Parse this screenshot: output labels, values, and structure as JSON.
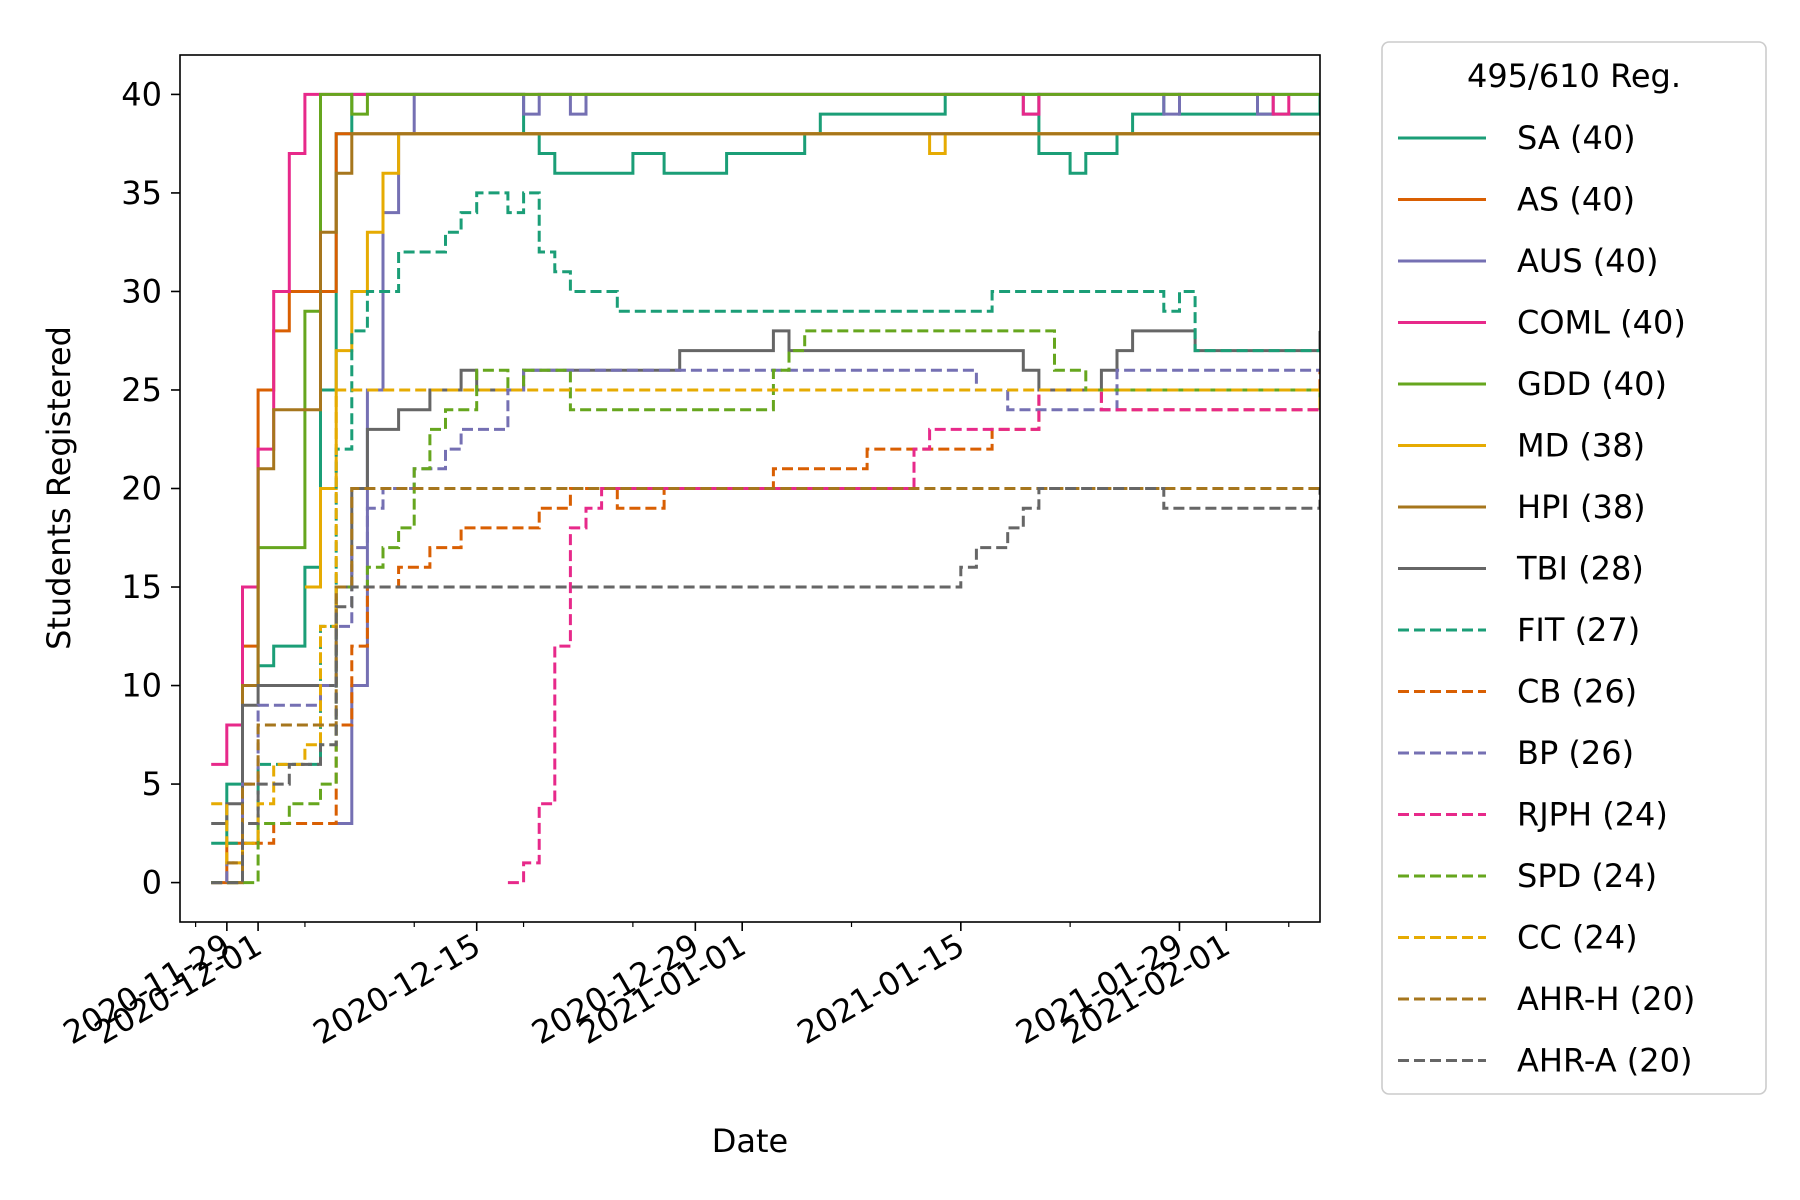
{
  "chart_data": {
    "type": "line",
    "title": "",
    "xlabel": "Date",
    "ylabel": "Students Registered",
    "x_type": "date",
    "xlim": [
      "2020-11-26",
      "2021-02-07"
    ],
    "ylim": [
      -2,
      42
    ],
    "x_ticks": [
      "2020-11-29",
      "2020-12-01",
      "2020-12-15",
      "2020-12-29",
      "2021-01-01",
      "2021-01-15",
      "2021-01-29",
      "2021-02-01"
    ],
    "y_ticks": [
      0,
      5,
      10,
      15,
      20,
      25,
      30,
      35,
      40
    ],
    "grid": false,
    "step": true,
    "legend": {
      "title": "495/610 Reg.",
      "position": "outside-right"
    },
    "series": [
      {
        "name": "SA (40)",
        "color": "#1b9e77",
        "dash": "solid",
        "x": [
          "2020-11-28",
          "2020-11-29",
          "2020-11-30",
          "2020-12-01",
          "2020-12-02",
          "2020-12-03",
          "2020-12-04",
          "2020-12-05",
          "2020-12-06",
          "2020-12-07",
          "2020-12-08",
          "2020-12-09",
          "2020-12-18",
          "2020-12-19",
          "2020-12-20",
          "2020-12-25",
          "2020-12-27",
          "2020-12-31",
          "2021-01-05",
          "2021-01-06",
          "2021-01-14",
          "2021-01-20",
          "2021-01-22",
          "2021-01-23",
          "2021-01-25",
          "2021-01-26",
          "2021-01-28",
          "2021-01-29",
          "2021-02-07"
        ],
        "y": [
          2,
          5,
          10,
          11,
          12,
          12,
          16,
          25,
          38,
          40,
          40,
          40,
          38,
          37,
          36,
          37,
          36,
          37,
          38,
          39,
          40,
          37,
          36,
          37,
          38,
          39,
          40,
          39,
          40
        ]
      },
      {
        "name": "AS (40)",
        "color": "#d95f02",
        "dash": "solid",
        "x": [
          "2020-11-28",
          "2020-11-29",
          "2020-11-30",
          "2020-12-01",
          "2020-12-02",
          "2020-12-03",
          "2020-12-04",
          "2020-12-05",
          "2020-12-06",
          "2020-12-07",
          "2021-02-07"
        ],
        "y": [
          0,
          2,
          12,
          25,
          28,
          30,
          30,
          30,
          38,
          38,
          38
        ]
      },
      {
        "name": "AUS (40)",
        "color": "#7570b3",
        "dash": "solid",
        "x": [
          "2020-12-06",
          "2020-12-07",
          "2020-12-08",
          "2020-12-09",
          "2020-12-10",
          "2020-12-11",
          "2020-12-12",
          "2020-12-18",
          "2020-12-19",
          "2020-12-21",
          "2020-12-22",
          "2021-01-19",
          "2021-01-20",
          "2021-01-28",
          "2021-01-29",
          "2021-02-03",
          "2021-02-04",
          "2021-02-07"
        ],
        "y": [
          3,
          10,
          25,
          34,
          38,
          40,
          40,
          39,
          40,
          39,
          40,
          39,
          40,
          39,
          40,
          39,
          40,
          40
        ]
      },
      {
        "name": "COML (40)",
        "color": "#e7298a",
        "dash": "solid",
        "x": [
          "2020-11-28",
          "2020-11-29",
          "2020-11-30",
          "2020-12-01",
          "2020-12-02",
          "2020-12-03",
          "2020-12-04",
          "2020-12-06",
          "2021-01-19",
          "2021-01-20",
          "2021-02-04",
          "2021-02-05"
        ],
        "y": [
          6,
          8,
          15,
          22,
          30,
          37,
          40,
          40,
          39,
          40,
          39,
          40
        ]
      },
      {
        "name": "GDD (40)",
        "color": "#66a61e",
        "dash": "solid",
        "x": [
          "2020-11-29",
          "2020-11-30",
          "2020-12-01",
          "2020-12-03",
          "2020-12-04",
          "2020-12-05",
          "2020-12-06",
          "2020-12-07",
          "2020-12-08",
          "2020-12-09",
          "2020-12-10",
          "2020-12-11",
          "2021-02-07"
        ],
        "y": [
          0,
          10,
          17,
          17,
          29,
          40,
          40,
          39,
          40,
          40,
          40,
          40,
          40
        ]
      },
      {
        "name": "MD (38)",
        "color": "#e6ab02",
        "dash": "solid",
        "x": [
          "2020-12-04",
          "2020-12-05",
          "2020-12-06",
          "2020-12-07",
          "2020-12-08",
          "2020-12-09",
          "2020-12-10",
          "2020-12-11",
          "2021-01-13",
          "2021-01-14",
          "2021-02-07"
        ],
        "y": [
          15,
          20,
          27,
          30,
          33,
          36,
          38,
          38,
          37,
          38,
          38
        ]
      },
      {
        "name": "HPI (38)",
        "color": "#a6761d",
        "dash": "solid",
        "x": [
          "2020-11-29",
          "2020-11-30",
          "2020-12-01",
          "2020-12-02",
          "2020-12-03",
          "2020-12-04",
          "2020-12-05",
          "2020-12-06",
          "2020-12-07",
          "2021-02-07"
        ],
        "y": [
          0,
          10,
          21,
          24,
          24,
          24,
          33,
          36,
          38,
          38
        ]
      },
      {
        "name": "TBI (28)",
        "color": "#666666",
        "dash": "solid",
        "x": [
          "2020-11-28",
          "2020-11-29",
          "2020-11-30",
          "2020-12-01",
          "2020-12-05",
          "2020-12-06",
          "2020-12-07",
          "2020-12-08",
          "2020-12-09",
          "2020-12-10",
          "2020-12-12",
          "2020-12-14",
          "2020-12-15",
          "2020-12-16",
          "2020-12-17",
          "2020-12-18",
          "2020-12-25",
          "2020-12-28",
          "2021-01-03",
          "2021-01-04",
          "2021-01-05",
          "2021-01-19",
          "2021-01-20",
          "2021-01-24",
          "2021-01-25",
          "2021-01-26",
          "2021-01-30",
          "2021-02-07"
        ],
        "y": [
          3,
          4,
          9,
          10,
          10,
          15,
          20,
          23,
          23,
          24,
          25,
          26,
          25,
          25,
          25,
          26,
          26,
          27,
          28,
          27,
          27,
          26,
          25,
          26,
          27,
          28,
          27,
          28
        ]
      },
      {
        "name": "FIT (27)",
        "color": "#1b9e77",
        "dash": "dashed",
        "x": [
          "2020-11-29",
          "2020-12-01",
          "2020-12-02",
          "2020-12-05",
          "2020-12-06",
          "2020-12-07",
          "2020-12-08",
          "2020-12-10",
          "2020-12-13",
          "2020-12-14",
          "2020-12-15",
          "2020-12-16",
          "2020-12-17",
          "2020-12-18",
          "2020-12-19",
          "2020-12-20",
          "2020-12-21",
          "2020-12-24",
          "2021-01-16",
          "2021-01-17",
          "2021-01-28",
          "2021-01-29",
          "2021-01-30",
          "2021-02-07"
        ],
        "y": [
          2,
          6,
          6,
          13,
          22,
          28,
          30,
          32,
          33,
          34,
          35,
          35,
          34,
          35,
          32,
          31,
          30,
          29,
          29,
          30,
          29,
          30,
          27,
          27
        ]
      },
      {
        "name": "CB (26)",
        "color": "#d95f02",
        "dash": "dashed",
        "x": [
          "2020-11-28",
          "2020-11-30",
          "2020-12-02",
          "2020-12-05",
          "2020-12-06",
          "2020-12-07",
          "2020-12-08",
          "2020-12-09",
          "2020-12-10",
          "2020-12-12",
          "2020-12-14",
          "2020-12-16",
          "2020-12-19",
          "2020-12-21",
          "2020-12-24",
          "2020-12-27",
          "2021-01-03",
          "2021-01-05",
          "2021-01-09",
          "2021-01-10",
          "2021-01-14",
          "2021-01-17",
          "2021-01-20",
          "2021-01-24",
          "2021-02-07"
        ],
        "y": [
          0,
          2,
          3,
          3,
          8,
          12,
          15,
          15,
          16,
          17,
          18,
          18,
          19,
          20,
          19,
          20,
          21,
          21,
          22,
          22,
          22,
          23,
          25,
          24,
          26
        ]
      },
      {
        "name": "BP (26)",
        "color": "#7570b3",
        "dash": "dashed",
        "x": [
          "2020-11-28",
          "2020-11-29",
          "2020-11-30",
          "2020-12-01",
          "2020-12-04",
          "2020-12-05",
          "2020-12-06",
          "2020-12-07",
          "2020-12-08",
          "2020-12-09",
          "2020-12-11",
          "2020-12-13",
          "2020-12-14",
          "2020-12-17",
          "2020-12-18",
          "2020-12-20",
          "2021-01-15",
          "2021-01-16",
          "2021-01-18",
          "2021-01-20",
          "2021-01-22",
          "2021-01-25",
          "2021-02-07"
        ],
        "y": [
          0,
          1,
          5,
          9,
          9,
          10,
          13,
          17,
          19,
          20,
          21,
          22,
          23,
          25,
          26,
          26,
          26,
          25,
          24,
          24,
          24,
          26,
          26
        ]
      },
      {
        "name": "RJPH (24)",
        "color": "#e7298a",
        "dash": "dashed",
        "x": [
          "2020-12-17",
          "2020-12-18",
          "2020-12-19",
          "2020-12-20",
          "2020-12-21",
          "2020-12-22",
          "2020-12-23",
          "2020-12-25",
          "2021-01-03",
          "2021-01-12",
          "2021-01-13",
          "2021-01-20",
          "2021-01-24",
          "2021-02-07"
        ],
        "y": [
          0,
          1,
          4,
          12,
          18,
          19,
          20,
          20,
          20,
          22,
          23,
          25,
          24,
          24
        ]
      },
      {
        "name": "SPD (24)",
        "color": "#66a61e",
        "dash": "dashed",
        "x": [
          "2020-11-28",
          "2020-12-01",
          "2020-12-03",
          "2020-12-05",
          "2020-12-06",
          "2020-12-08",
          "2020-12-09",
          "2020-12-10",
          "2020-12-11",
          "2020-12-12",
          "2020-12-13",
          "2020-12-15",
          "2020-12-17",
          "2020-12-18",
          "2020-12-20",
          "2020-12-21",
          "2021-01-03",
          "2021-01-04",
          "2021-01-05",
          "2021-01-21",
          "2021-01-23",
          "2021-02-07"
        ],
        "y": [
          0,
          3,
          4,
          5,
          15,
          16,
          17,
          18,
          21,
          23,
          24,
          26,
          25,
          26,
          26,
          24,
          26,
          27,
          28,
          26,
          25,
          24
        ]
      },
      {
        "name": "CC (24)",
        "color": "#e6ab02",
        "dash": "dashed",
        "x": [
          "2020-11-28",
          "2020-11-29",
          "2020-11-30",
          "2020-12-01",
          "2020-12-02",
          "2020-12-04",
          "2020-12-05",
          "2020-12-06",
          "2021-01-28",
          "2021-02-07"
        ],
        "y": [
          4,
          1,
          2,
          4,
          6,
          7,
          13,
          25,
          25,
          24
        ]
      },
      {
        "name": "AHR-H (20)",
        "color": "#a6761d",
        "dash": "dashed",
        "x": [
          "2020-11-29",
          "2020-11-30",
          "2020-12-01",
          "2020-12-05",
          "2020-12-06",
          "2020-12-07",
          "2021-02-07"
        ],
        "y": [
          1,
          5,
          8,
          8,
          15,
          20,
          20
        ]
      },
      {
        "name": "AHR-A (20)",
        "color": "#666666",
        "dash": "dashed",
        "x": [
          "2020-11-28",
          "2020-11-29",
          "2020-11-30",
          "2020-12-01",
          "2020-12-03",
          "2020-12-05",
          "2020-12-06",
          "2020-12-07",
          "2021-01-14",
          "2021-01-15",
          "2021-01-16",
          "2021-01-18",
          "2021-01-19",
          "2021-01-20",
          "2021-01-21",
          "2021-01-28",
          "2021-02-07"
        ],
        "y": [
          0,
          0,
          3,
          5,
          6,
          7,
          14,
          15,
          15,
          16,
          17,
          18,
          19,
          20,
          20,
          19,
          20
        ]
      }
    ]
  }
}
